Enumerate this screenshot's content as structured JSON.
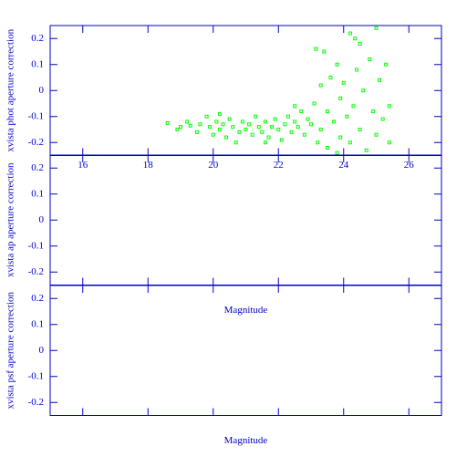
{
  "chart_data": [
    {
      "type": "scatter",
      "ylabel": "xvista phot aperture correction",
      "color": "#00ff00",
      "xlim": [
        15,
        27
      ],
      "ylim": [
        -0.25,
        0.25
      ],
      "xticks": [
        16,
        18,
        20,
        22,
        24,
        26
      ],
      "yticks": [
        -0.2,
        -0.1,
        0,
        0.1,
        0.2
      ],
      "x": [
        18.6,
        18.9,
        19.0,
        19.2,
        19.3,
        19.5,
        19.6,
        19.8,
        19.9,
        20.0,
        20.1,
        20.2,
        20.3,
        20.4,
        20.5,
        20.6,
        20.7,
        20.8,
        20.9,
        21.0,
        21.1,
        21.2,
        21.3,
        21.4,
        21.5,
        21.6,
        21.7,
        21.8,
        21.9,
        22.0,
        22.1,
        22.2,
        22.3,
        22.4,
        22.5,
        22.6,
        22.7,
        22.8,
        22.9,
        23.0,
        23.1,
        23.2,
        23.3,
        23.3,
        23.4,
        23.5,
        23.5,
        23.6,
        23.7,
        23.8,
        23.9,
        23.9,
        24.0,
        24.1,
        24.2,
        24.2,
        24.3,
        24.4,
        24.5,
        24.5,
        24.6,
        24.7,
        24.8,
        24.9,
        25.0,
        25.0,
        25.1,
        25.2,
        25.3,
        25.4,
        25.4,
        24.35,
        23.15,
        23.8,
        22.5,
        21.6,
        20.2
      ],
      "y": [
        -0.125,
        -0.15,
        -0.14,
        -0.12,
        -0.135,
        -0.16,
        -0.13,
        -0.1,
        -0.14,
        -0.17,
        -0.12,
        -0.15,
        -0.13,
        -0.18,
        -0.11,
        -0.14,
        -0.2,
        -0.16,
        -0.12,
        -0.15,
        -0.13,
        -0.17,
        -0.1,
        -0.14,
        -0.16,
        -0.12,
        -0.18,
        -0.14,
        -0.11,
        -0.15,
        -0.19,
        -0.13,
        -0.1,
        -0.16,
        -0.12,
        -0.14,
        -0.08,
        -0.17,
        -0.11,
        -0.13,
        -0.05,
        -0.2,
        0.02,
        -0.15,
        0.15,
        -0.08,
        -0.22,
        0.05,
        -0.12,
        0.1,
        -0.03,
        -0.18,
        0.03,
        -0.1,
        0.22,
        -0.2,
        -0.06,
        0.08,
        -0.15,
        0.18,
        0.0,
        -0.23,
        0.12,
        -0.08,
        0.24,
        -0.17,
        0.04,
        -0.11,
        0.1,
        -0.06,
        -0.2,
        0.2,
        0.16,
        -0.24,
        -0.06,
        -0.2,
        -0.09
      ]
    },
    {
      "type": "scatter",
      "ylabel": "xvista ap aperture correction",
      "xlabel": "Magnitude",
      "xlim": [
        15,
        27
      ],
      "ylim": [
        -0.25,
        0.25
      ],
      "yticks": [
        -0.2,
        -0.1,
        0,
        0.1,
        0.2
      ],
      "x": [],
      "y": []
    },
    {
      "type": "scatter",
      "ylabel": "xvista psf aperture correction",
      "xlabel": "Magnitude",
      "xlim": [
        15,
        27
      ],
      "ylim": [
        -0.25,
        0.25
      ],
      "yticks": [
        -0.2,
        -0.1,
        0,
        0.1,
        0.2
      ],
      "x": [],
      "y": []
    }
  ]
}
